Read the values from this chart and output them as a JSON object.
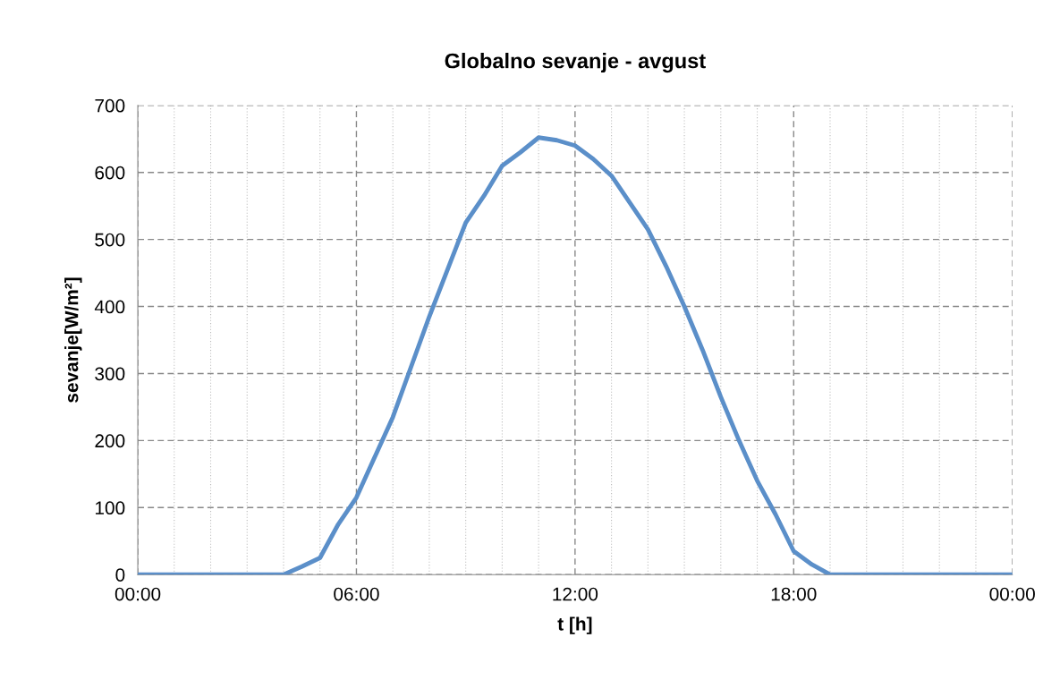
{
  "chart_data": {
    "type": "line",
    "title": "Globalno sevanje - avgust",
    "xlabel": "t [h]",
    "ylabel": "sevanje[W/m²]",
    "x": [
      0,
      1,
      2,
      3,
      4,
      4.5,
      5,
      5.5,
      6,
      6.5,
      7,
      7.5,
      8,
      8.5,
      9,
      9.5,
      10,
      10.5,
      11,
      11.5,
      12,
      12.5,
      13,
      13.5,
      14,
      14.5,
      15,
      15.5,
      16,
      16.5,
      17,
      17.5,
      18,
      18.5,
      19,
      20,
      21,
      22,
      23,
      24
    ],
    "series": [
      {
        "color": "#5b8fc9",
        "values": [
          0,
          0,
          0,
          0,
          0,
          12,
          25,
          75,
          115,
          175,
          235,
          310,
          385,
          455,
          525,
          565,
          610,
          630,
          652,
          648,
          640,
          620,
          595,
          555,
          515,
          460,
          400,
          335,
          265,
          200,
          140,
          90,
          35,
          15,
          0,
          0,
          0,
          0,
          0,
          0
        ]
      }
    ],
    "xlim": [
      0,
      24
    ],
    "xticks": [
      {
        "value": 0,
        "label": "00:00"
      },
      {
        "value": 1,
        "label": null
      },
      {
        "value": 2,
        "label": null
      },
      {
        "value": 3,
        "label": null
      },
      {
        "value": 4,
        "label": null
      },
      {
        "value": 5,
        "label": null
      },
      {
        "value": 6,
        "label": "06:00"
      },
      {
        "value": 7,
        "label": null
      },
      {
        "value": 8,
        "label": null
      },
      {
        "value": 9,
        "label": null
      },
      {
        "value": 10,
        "label": null
      },
      {
        "value": 11,
        "label": null
      },
      {
        "value": 12,
        "label": "12:00"
      },
      {
        "value": 13,
        "label": null
      },
      {
        "value": 14,
        "label": null
      },
      {
        "value": 15,
        "label": null
      },
      {
        "value": 16,
        "label": null
      },
      {
        "value": 17,
        "label": null
      },
      {
        "value": 18,
        "label": "18:00"
      },
      {
        "value": 19,
        "label": null
      },
      {
        "value": 20,
        "label": null
      },
      {
        "value": 21,
        "label": null
      },
      {
        "value": 22,
        "label": null
      },
      {
        "value": 23,
        "label": null
      },
      {
        "value": 24,
        "label": "00:00"
      }
    ],
    "ylim": [
      0,
      700
    ],
    "yticks": [
      0,
      100,
      200,
      300,
      400,
      500,
      600,
      700
    ],
    "grid": true,
    "legend": false,
    "marker": "none",
    "line_style": "solid"
  }
}
